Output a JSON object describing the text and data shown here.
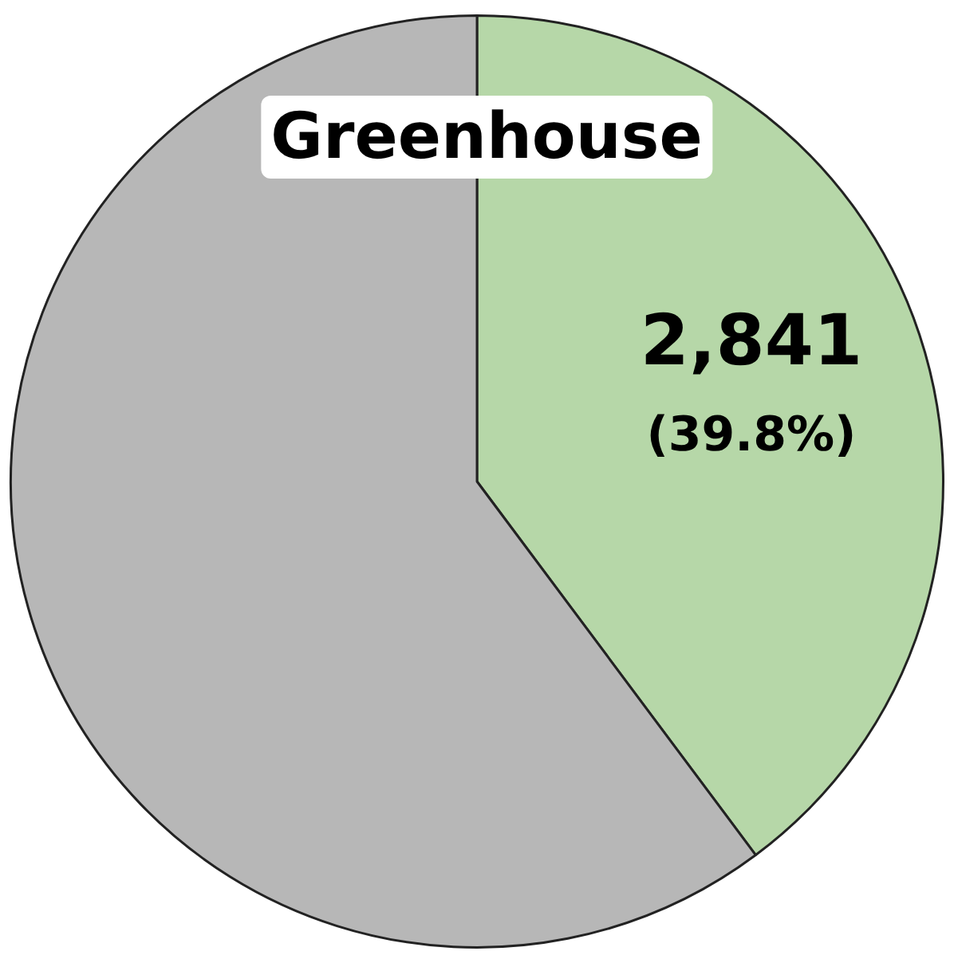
{
  "chart_data": {
    "type": "pie",
    "title": "Greenhouse",
    "categories": [
      null,
      null
    ],
    "values": [
      2841,
      4297
    ],
    "colors": [
      "#b6d7a8",
      "#b7b7b7"
    ],
    "value_labels": [
      "2,841\n(39.8%)",
      null
    ],
    "legend": false
  }
}
